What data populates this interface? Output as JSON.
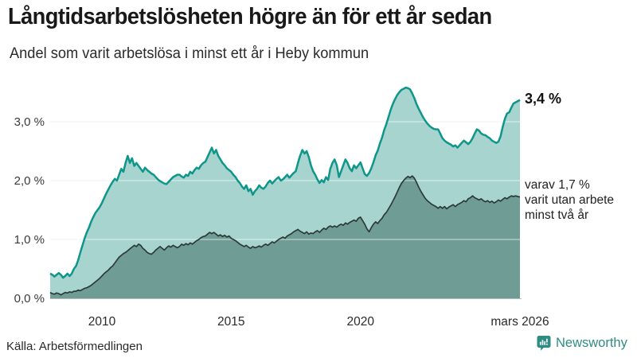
{
  "header": {
    "title": "Långtidsarbetslösheten högre än för ett år sedan",
    "subtitle": "Andel som varit arbetslösa i minst ett år i Heby kommun"
  },
  "annotations": {
    "latest_value": "3,4 %",
    "secondary_line1": "varav 1,7 %",
    "secondary_line2": "varit utan arbete",
    "secondary_line3": "minst två år"
  },
  "axes": {
    "y_ticks": [
      "3,0 %",
      "2,0 %",
      "1,0 %",
      "0,0 %"
    ],
    "x_ticks": [
      "2010",
      "2015",
      "2020",
      "mars 2026"
    ]
  },
  "footer": {
    "source": "Källa: Arbetsförmedlingen",
    "brand": "Newsworthy"
  },
  "colors": {
    "line_1yr": "#0f968a",
    "fill_1yr": "#a7d4ce",
    "line_2yr": "#2c3b39",
    "fill_2yr": "#6f9d96",
    "grid": "#e4e4e8",
    "grid_overlay": "rgba(255,255,255,0.45)",
    "axis_line": "#b8bcbc",
    "brand_teal": "#2f8c83"
  },
  "chart_data": {
    "type": "area",
    "title": "Långtidsarbetslösheten högre än för ett år sedan",
    "subtitle": "Andel som varit arbetslösa i minst ett år i Heby kommun",
    "unit": "%",
    "frequency": "monthly",
    "x_start": "2008-01",
    "x_end": "2026-03",
    "ylim": [
      0,
      3.7
    ],
    "y_gridlines": [
      1.0,
      2.0,
      3.0
    ],
    "y_tick_values": [
      3,
      2,
      1,
      0
    ],
    "x_tick_month_indices": [
      24,
      84,
      144,
      218
    ],
    "latest_values": {
      "minst_ett_ar": 3.4,
      "minst_tva_ar": 1.7
    },
    "series": [
      {
        "name": "Andel arbetslösa minst ett år",
        "values": [
          0.42,
          0.4,
          0.37,
          0.4,
          0.43,
          0.4,
          0.35,
          0.38,
          0.42,
          0.38,
          0.42,
          0.5,
          0.55,
          0.65,
          0.78,
          0.9,
          1.02,
          1.12,
          1.2,
          1.3,
          1.38,
          1.45,
          1.5,
          1.55,
          1.62,
          1.7,
          1.78,
          1.85,
          1.92,
          1.98,
          2.03,
          2.0,
          2.1,
          2.2,
          2.15,
          2.3,
          2.42,
          2.3,
          2.38,
          2.25,
          2.3,
          2.25,
          2.2,
          2.15,
          2.22,
          2.18,
          2.15,
          2.12,
          2.1,
          2.06,
          2.02,
          1.99,
          1.97,
          1.95,
          1.94,
          1.98,
          2.02,
          2.06,
          2.08,
          2.1,
          2.1,
          2.07,
          2.05,
          2.1,
          2.08,
          2.15,
          2.12,
          2.18,
          2.22,
          2.2,
          2.26,
          2.3,
          2.32,
          2.4,
          2.48,
          2.56,
          2.46,
          2.52,
          2.42,
          2.36,
          2.3,
          2.26,
          2.21,
          2.18,
          2.15,
          2.1,
          2.06,
          2.0,
          1.96,
          1.9,
          1.86,
          1.92,
          1.82,
          1.86,
          1.76,
          1.82,
          1.86,
          1.92,
          1.88,
          1.86,
          1.9,
          1.96,
          2.0,
          1.95,
          1.99,
          2.03,
          2.06,
          2.0,
          2.02,
          2.06,
          2.1,
          2.05,
          2.09,
          2.13,
          2.16,
          2.3,
          2.42,
          2.52,
          2.46,
          2.5,
          2.4,
          2.26,
          2.16,
          2.1,
          2.02,
          1.96,
          2.01,
          1.97,
          2.06,
          2.01,
          2.2,
          2.3,
          2.36,
          2.26,
          2.06,
          2.16,
          2.26,
          2.36,
          2.3,
          2.21,
          2.16,
          2.26,
          2.21,
          2.26,
          2.31,
          2.21,
          2.11,
          2.08,
          2.13,
          2.21,
          2.31,
          2.43,
          2.51,
          2.63,
          2.73,
          2.86,
          2.96,
          3.08,
          3.2,
          3.3,
          3.38,
          3.45,
          3.5,
          3.54,
          3.56,
          3.58,
          3.57,
          3.55,
          3.48,
          3.4,
          3.3,
          3.22,
          3.15,
          3.08,
          3.02,
          2.97,
          2.93,
          2.9,
          2.88,
          2.87,
          2.87,
          2.8,
          2.72,
          2.68,
          2.65,
          2.63,
          2.61,
          2.58,
          2.6,
          2.56,
          2.6,
          2.64,
          2.68,
          2.65,
          2.62,
          2.66,
          2.72,
          2.8,
          2.87,
          2.85,
          2.8,
          2.78,
          2.77,
          2.74,
          2.72,
          2.68,
          2.66,
          2.64,
          2.66,
          2.75,
          2.91,
          3.05,
          3.14,
          3.16,
          3.24,
          3.31,
          3.33,
          3.35,
          3.37
        ]
      },
      {
        "name": "varav arbetslösa minst två år",
        "values": [
          0.1,
          0.08,
          0.07,
          0.09,
          0.08,
          0.06,
          0.08,
          0.1,
          0.09,
          0.11,
          0.1,
          0.12,
          0.12,
          0.14,
          0.13,
          0.15,
          0.17,
          0.18,
          0.2,
          0.22,
          0.25,
          0.28,
          0.31,
          0.34,
          0.38,
          0.42,
          0.45,
          0.48,
          0.52,
          0.55,
          0.6,
          0.65,
          0.7,
          0.73,
          0.76,
          0.78,
          0.81,
          0.84,
          0.87,
          0.9,
          0.88,
          0.92,
          0.9,
          0.85,
          0.82,
          0.78,
          0.76,
          0.75,
          0.78,
          0.82,
          0.85,
          0.88,
          0.85,
          0.82,
          0.86,
          0.89,
          0.87,
          0.9,
          0.88,
          0.86,
          0.88,
          0.92,
          0.9,
          0.93,
          0.91,
          0.94,
          0.92,
          0.95,
          0.98,
          1.0,
          1.03,
          1.05,
          1.06,
          1.09,
          1.12,
          1.1,
          1.12,
          1.09,
          1.06,
          1.08,
          1.05,
          1.07,
          1.04,
          1.06,
          1.02,
          1.0,
          0.98,
          0.95,
          0.92,
          0.9,
          0.88,
          0.9,
          0.87,
          0.85,
          0.88,
          0.86,
          0.87,
          0.89,
          0.87,
          0.9,
          0.92,
          0.9,
          0.93,
          0.96,
          0.94,
          0.97,
          1.0,
          1.02,
          1.04,
          1.02,
          1.06,
          1.08,
          1.1,
          1.13,
          1.15,
          1.17,
          1.14,
          1.12,
          1.1,
          1.13,
          1.09,
          1.11,
          1.1,
          1.13,
          1.15,
          1.12,
          1.16,
          1.19,
          1.17,
          1.21,
          1.23,
          1.21,
          1.23,
          1.21,
          1.24,
          1.26,
          1.24,
          1.28,
          1.26,
          1.29,
          1.31,
          1.33,
          1.31,
          1.36,
          1.38,
          1.32,
          1.26,
          1.18,
          1.13,
          1.2,
          1.26,
          1.3,
          1.27,
          1.32,
          1.36,
          1.42,
          1.46,
          1.52,
          1.58,
          1.65,
          1.72,
          1.8,
          1.88,
          1.95,
          2.0,
          2.04,
          2.07,
          2.05,
          2.08,
          2.04,
          1.97,
          1.89,
          1.82,
          1.76,
          1.7,
          1.66,
          1.63,
          1.6,
          1.58,
          1.56,
          1.53,
          1.56,
          1.53,
          1.56,
          1.52,
          1.55,
          1.57,
          1.59,
          1.56,
          1.59,
          1.61,
          1.63,
          1.66,
          1.64,
          1.69,
          1.71,
          1.74,
          1.71,
          1.69,
          1.67,
          1.69,
          1.66,
          1.64,
          1.66,
          1.63,
          1.65,
          1.62,
          1.64,
          1.67,
          1.65,
          1.68,
          1.71,
          1.69,
          1.72,
          1.74,
          1.73,
          1.74,
          1.73,
          1.72
        ]
      }
    ]
  }
}
